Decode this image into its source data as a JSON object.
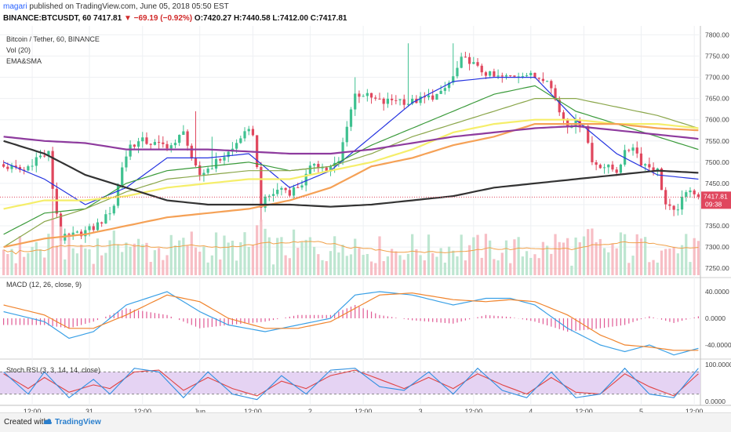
{
  "header": {
    "author": "magari",
    "published_text": "published on TradingView.com, June 05, 2018 05:50 EST",
    "symbol": "BINANCE:BTCUSDT, 60",
    "last": "7417.81",
    "change": "▼ −69.19 (−0.92%)",
    "ohlc": "O:7420.27 H:7440.58 L:7412.00 C:7417.81"
  },
  "legend": {
    "title": "Bitcoin / Tether, 60, BINANCE",
    "vol": "Vol (20)",
    "ema": "EMA&SMA",
    "macd": "MACD (12, 26, close, 9)",
    "stoch": "Stoch RSI (3, 3, 14, 14, close)"
  },
  "price_tag": {
    "value": "7417.81",
    "time": "09:38"
  },
  "footer": {
    "created": "Created with",
    "brand": "TradingView"
  },
  "colors": {
    "up": "#3fc190",
    "down": "#e0475e",
    "vol_up": "#b7e3cc",
    "vol_down": "#f6b7bf",
    "ma_blue": "#2433e0",
    "ma_green1": "#3a9a3a",
    "ma_green2": "#8aa64a",
    "ma_yellow": "#f5ee6a",
    "ma_orange": "#f5a156",
    "ma_purple": "#8e3b9e",
    "ma_black": "#333333",
    "macd": "#3aa0e6",
    "signal": "#f0842d",
    "hist": "#e05a95",
    "stoch_k": "#2f8fe0",
    "stoch_d": "#e04545",
    "stoch_band": "#e5d3f3"
  },
  "chart_data": {
    "type": "candlestick",
    "title": "Bitcoin / Tether, 60, BINANCE",
    "x_ticks": [
      "12:00",
      "31",
      "12:00",
      "Jun",
      "12:00",
      "2",
      "12:00",
      "3",
      "12:00",
      "4",
      "12:00",
      "5",
      "12:00"
    ],
    "x_tick_index": [
      7,
      21,
      34,
      48,
      61,
      75,
      88,
      102,
      115,
      129,
      142,
      156,
      169
    ],
    "price_axis": {
      "ylim": [
        7230,
        7810
      ],
      "ticks": [
        "7800.00",
        "7750.00",
        "7700.00",
        "7650.00",
        "7600.00",
        "7550.00",
        "7500.00",
        "7450.00",
        "7400.00",
        "7350.00",
        "7300.00",
        "7250.00"
      ]
    },
    "anchors_close": [
      [
        0,
        7490
      ],
      [
        5,
        7480
      ],
      [
        8,
        7510
      ],
      [
        11,
        7520
      ],
      [
        12,
        7440
      ],
      [
        14,
        7320
      ],
      [
        18,
        7330
      ],
      [
        22,
        7345
      ],
      [
        25,
        7370
      ],
      [
        27,
        7400
      ],
      [
        29,
        7490
      ],
      [
        31,
        7540
      ],
      [
        34,
        7550
      ],
      [
        38,
        7540
      ],
      [
        42,
        7540
      ],
      [
        44,
        7580
      ],
      [
        46,
        7500
      ],
      [
        48,
        7470
      ],
      [
        52,
        7500
      ],
      [
        56,
        7530
      ],
      [
        58,
        7560
      ],
      [
        60,
        7570
      ],
      [
        61,
        7570
      ],
      [
        63,
        7400
      ],
      [
        65,
        7420
      ],
      [
        68,
        7440
      ],
      [
        70,
        7430
      ],
      [
        73,
        7450
      ],
      [
        76,
        7500
      ],
      [
        79,
        7480
      ],
      [
        82,
        7500
      ],
      [
        84,
        7590
      ],
      [
        86,
        7660
      ],
      [
        88,
        7660
      ],
      [
        90,
        7650
      ],
      [
        93,
        7640
      ],
      [
        96,
        7650
      ],
      [
        99,
        7640
      ],
      [
        103,
        7650
      ],
      [
        107,
        7660
      ],
      [
        110,
        7700
      ],
      [
        112,
        7740
      ],
      [
        114,
        7740
      ],
      [
        116,
        7720
      ],
      [
        118,
        7710
      ],
      [
        120,
        7700
      ],
      [
        123,
        7700
      ],
      [
        127,
        7710
      ],
      [
        130,
        7700
      ],
      [
        133,
        7700
      ],
      [
        136,
        7620
      ],
      [
        138,
        7590
      ],
      [
        140,
        7590
      ],
      [
        142,
        7590
      ],
      [
        144,
        7500
      ],
      [
        147,
        7490
      ],
      [
        150,
        7480
      ],
      [
        152,
        7520
      ],
      [
        154,
        7540
      ],
      [
        156,
        7500
      ],
      [
        158,
        7490
      ],
      [
        160,
        7480
      ],
      [
        162,
        7400
      ],
      [
        164,
        7380
      ],
      [
        166,
        7410
      ],
      [
        168,
        7440
      ],
      [
        170,
        7420
      ]
    ],
    "spikes": [
      [
        12,
        "low",
        7330
      ],
      [
        63,
        "low",
        7360
      ],
      [
        99,
        "high",
        7780
      ],
      [
        110,
        "high",
        7780
      ],
      [
        86,
        "high",
        7700
      ],
      [
        47,
        "high",
        7620
      ],
      [
        51,
        "high",
        7560
      ]
    ],
    "ma_lines": [
      {
        "name": "EMA (blue)",
        "color_key": "ma_blue",
        "points": [
          [
            0,
            7500
          ],
          [
            10,
            7460
          ],
          [
            20,
            7400
          ],
          [
            30,
            7440
          ],
          [
            40,
            7510
          ],
          [
            50,
            7510
          ],
          [
            60,
            7520
          ],
          [
            70,
            7440
          ],
          [
            80,
            7480
          ],
          [
            90,
            7560
          ],
          [
            100,
            7640
          ],
          [
            110,
            7690
          ],
          [
            120,
            7700
          ],
          [
            130,
            7700
          ],
          [
            140,
            7600
          ],
          [
            150,
            7520
          ],
          [
            160,
            7470
          ],
          [
            170,
            7460
          ]
        ]
      },
      {
        "name": "EMA (green)",
        "color_key": "ma_green1",
        "points": [
          [
            0,
            7330
          ],
          [
            10,
            7380
          ],
          [
            20,
            7390
          ],
          [
            30,
            7450
          ],
          [
            40,
            7480
          ],
          [
            50,
            7490
          ],
          [
            60,
            7500
          ],
          [
            70,
            7480
          ],
          [
            80,
            7490
          ],
          [
            90,
            7540
          ],
          [
            100,
            7580
          ],
          [
            110,
            7620
          ],
          [
            120,
            7660
          ],
          [
            130,
            7680
          ],
          [
            140,
            7620
          ],
          [
            150,
            7590
          ],
          [
            160,
            7560
          ],
          [
            170,
            7530
          ]
        ]
      },
      {
        "name": "EMA (olive)",
        "color_key": "ma_green2",
        "points": [
          [
            0,
            7300
          ],
          [
            10,
            7360
          ],
          [
            20,
            7390
          ],
          [
            30,
            7430
          ],
          [
            40,
            7460
          ],
          [
            50,
            7470
          ],
          [
            60,
            7480
          ],
          [
            70,
            7480
          ],
          [
            80,
            7490
          ],
          [
            90,
            7520
          ],
          [
            100,
            7560
          ],
          [
            110,
            7590
          ],
          [
            120,
            7620
          ],
          [
            130,
            7650
          ],
          [
            140,
            7650
          ],
          [
            150,
            7630
          ],
          [
            160,
            7610
          ],
          [
            170,
            7580
          ]
        ]
      },
      {
        "name": "SMA (yellow)",
        "color_key": "ma_yellow",
        "points": [
          [
            0,
            7390
          ],
          [
            10,
            7410
          ],
          [
            20,
            7410
          ],
          [
            30,
            7420
          ],
          [
            40,
            7440
          ],
          [
            50,
            7450
          ],
          [
            60,
            7460
          ],
          [
            70,
            7460
          ],
          [
            80,
            7480
          ],
          [
            90,
            7500
          ],
          [
            100,
            7530
          ],
          [
            110,
            7570
          ],
          [
            120,
            7590
          ],
          [
            130,
            7600
          ],
          [
            140,
            7600
          ],
          [
            150,
            7590
          ],
          [
            160,
            7590
          ],
          [
            170,
            7580
          ]
        ]
      },
      {
        "name": "EMA (orange)",
        "color_key": "ma_orange",
        "points": [
          [
            0,
            7300
          ],
          [
            10,
            7320
          ],
          [
            20,
            7330
          ],
          [
            30,
            7350
          ],
          [
            40,
            7370
          ],
          [
            50,
            7380
          ],
          [
            60,
            7390
          ],
          [
            70,
            7410
          ],
          [
            80,
            7440
          ],
          [
            90,
            7490
          ],
          [
            100,
            7510
          ],
          [
            110,
            7540
          ],
          [
            120,
            7560
          ],
          [
            130,
            7590
          ],
          [
            140,
            7590
          ],
          [
            150,
            7590
          ],
          [
            160,
            7580
          ],
          [
            170,
            7575
          ]
        ]
      },
      {
        "name": "SMA (purple)",
        "color_key": "ma_purple",
        "points": [
          [
            0,
            7560
          ],
          [
            10,
            7550
          ],
          [
            20,
            7545
          ],
          [
            30,
            7530
          ],
          [
            40,
            7530
          ],
          [
            50,
            7530
          ],
          [
            60,
            7525
          ],
          [
            70,
            7520
          ],
          [
            80,
            7520
          ],
          [
            90,
            7530
          ],
          [
            100,
            7545
          ],
          [
            110,
            7560
          ],
          [
            120,
            7570
          ],
          [
            130,
            7580
          ],
          [
            140,
            7585
          ],
          [
            150,
            7575
          ],
          [
            160,
            7565
          ],
          [
            170,
            7555
          ]
        ]
      },
      {
        "name": "SMA (black)",
        "color_key": "ma_black",
        "points": [
          [
            0,
            7550
          ],
          [
            10,
            7520
          ],
          [
            20,
            7470
          ],
          [
            30,
            7440
          ],
          [
            40,
            7410
          ],
          [
            50,
            7400
          ],
          [
            60,
            7400
          ],
          [
            70,
            7400
          ],
          [
            80,
            7395
          ],
          [
            90,
            7400
          ],
          [
            100,
            7410
          ],
          [
            110,
            7420
          ],
          [
            120,
            7440
          ],
          [
            130,
            7450
          ],
          [
            140,
            7460
          ],
          [
            150,
            7470
          ],
          [
            160,
            7480
          ],
          [
            170,
            7475
          ]
        ]
      }
    ],
    "volume": {
      "avg_line": true,
      "max_relative": 1.0
    },
    "macd": {
      "ylim": [
        -60,
        60
      ],
      "ticks": [
        "40.0000",
        "0.0000",
        "-40.0000"
      ],
      "macd_points": [
        [
          0,
          10
        ],
        [
          10,
          -5
        ],
        [
          16,
          -30
        ],
        [
          22,
          -20
        ],
        [
          30,
          20
        ],
        [
          40,
          40
        ],
        [
          48,
          10
        ],
        [
          55,
          -10
        ],
        [
          64,
          -20
        ],
        [
          72,
          -10
        ],
        [
          80,
          0
        ],
        [
          86,
          35
        ],
        [
          92,
          40
        ],
        [
          100,
          35
        ],
        [
          110,
          20
        ],
        [
          118,
          30
        ],
        [
          124,
          30
        ],
        [
          130,
          20
        ],
        [
          138,
          -15
        ],
        [
          146,
          -40
        ],
        [
          152,
          -50
        ],
        [
          158,
          -40
        ],
        [
          164,
          -55
        ],
        [
          170,
          -45
        ]
      ],
      "signal_points": [
        [
          0,
          20
        ],
        [
          10,
          5
        ],
        [
          16,
          -15
        ],
        [
          22,
          -15
        ],
        [
          30,
          5
        ],
        [
          40,
          35
        ],
        [
          48,
          25
        ],
        [
          55,
          0
        ],
        [
          64,
          -15
        ],
        [
          72,
          -15
        ],
        [
          80,
          -5
        ],
        [
          86,
          15
        ],
        [
          92,
          35
        ],
        [
          100,
          38
        ],
        [
          110,
          28
        ],
        [
          118,
          25
        ],
        [
          124,
          28
        ],
        [
          130,
          25
        ],
        [
          138,
          5
        ],
        [
          146,
          -25
        ],
        [
          152,
          -40
        ],
        [
          158,
          -43
        ],
        [
          164,
          -48
        ],
        [
          170,
          -48
        ]
      ]
    },
    "stoch_rsi": {
      "ylim": [
        0,
        100
      ],
      "ticks": [
        "100.0000",
        "0.0000"
      ],
      "band": [
        20,
        80
      ],
      "k_points": [
        [
          0,
          80
        ],
        [
          6,
          20
        ],
        [
          10,
          80
        ],
        [
          16,
          10
        ],
        [
          22,
          60
        ],
        [
          26,
          20
        ],
        [
          32,
          90
        ],
        [
          38,
          80
        ],
        [
          44,
          10
        ],
        [
          50,
          80
        ],
        [
          56,
          20
        ],
        [
          62,
          5
        ],
        [
          68,
          70
        ],
        [
          74,
          20
        ],
        [
          80,
          85
        ],
        [
          86,
          90
        ],
        [
          92,
          40
        ],
        [
          98,
          30
        ],
        [
          104,
          80
        ],
        [
          110,
          20
        ],
        [
          116,
          90
        ],
        [
          122,
          30
        ],
        [
          128,
          10
        ],
        [
          134,
          80
        ],
        [
          140,
          10
        ],
        [
          146,
          20
        ],
        [
          152,
          90
        ],
        [
          158,
          20
        ],
        [
          164,
          10
        ],
        [
          170,
          90
        ]
      ],
      "d_points": [
        [
          0,
          75
        ],
        [
          6,
          35
        ],
        [
          10,
          65
        ],
        [
          16,
          25
        ],
        [
          22,
          45
        ],
        [
          26,
          35
        ],
        [
          32,
          80
        ],
        [
          38,
          85
        ],
        [
          44,
          30
        ],
        [
          50,
          65
        ],
        [
          56,
          35
        ],
        [
          62,
          15
        ],
        [
          68,
          55
        ],
        [
          74,
          35
        ],
        [
          80,
          70
        ],
        [
          86,
          85
        ],
        [
          92,
          60
        ],
        [
          98,
          35
        ],
        [
          104,
          65
        ],
        [
          110,
          35
        ],
        [
          116,
          75
        ],
        [
          122,
          45
        ],
        [
          128,
          20
        ],
        [
          134,
          65
        ],
        [
          140,
          25
        ],
        [
          146,
          20
        ],
        [
          152,
          75
        ],
        [
          158,
          40
        ],
        [
          164,
          15
        ],
        [
          170,
          75
        ]
      ]
    }
  }
}
